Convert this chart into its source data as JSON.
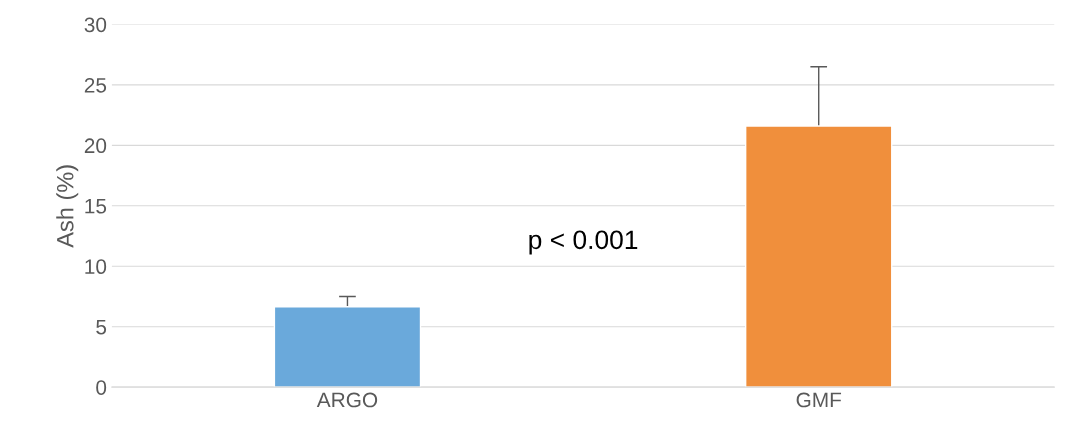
{
  "chart_data": {
    "type": "bar",
    "ylabel": "Ash (%)",
    "categories": [
      "ARGO",
      "GMF"
    ],
    "values": [
      6.65,
      21.6
    ],
    "colors": [
      "#6aa9db",
      "#f08f3c"
    ],
    "errors": [
      0.85,
      4.9
    ],
    "ylim": [
      0,
      30
    ],
    "yticks": [
      0,
      5,
      10,
      15,
      20,
      25,
      30
    ],
    "grid": "y",
    "annotations": [
      "p < 0.001"
    ]
  }
}
